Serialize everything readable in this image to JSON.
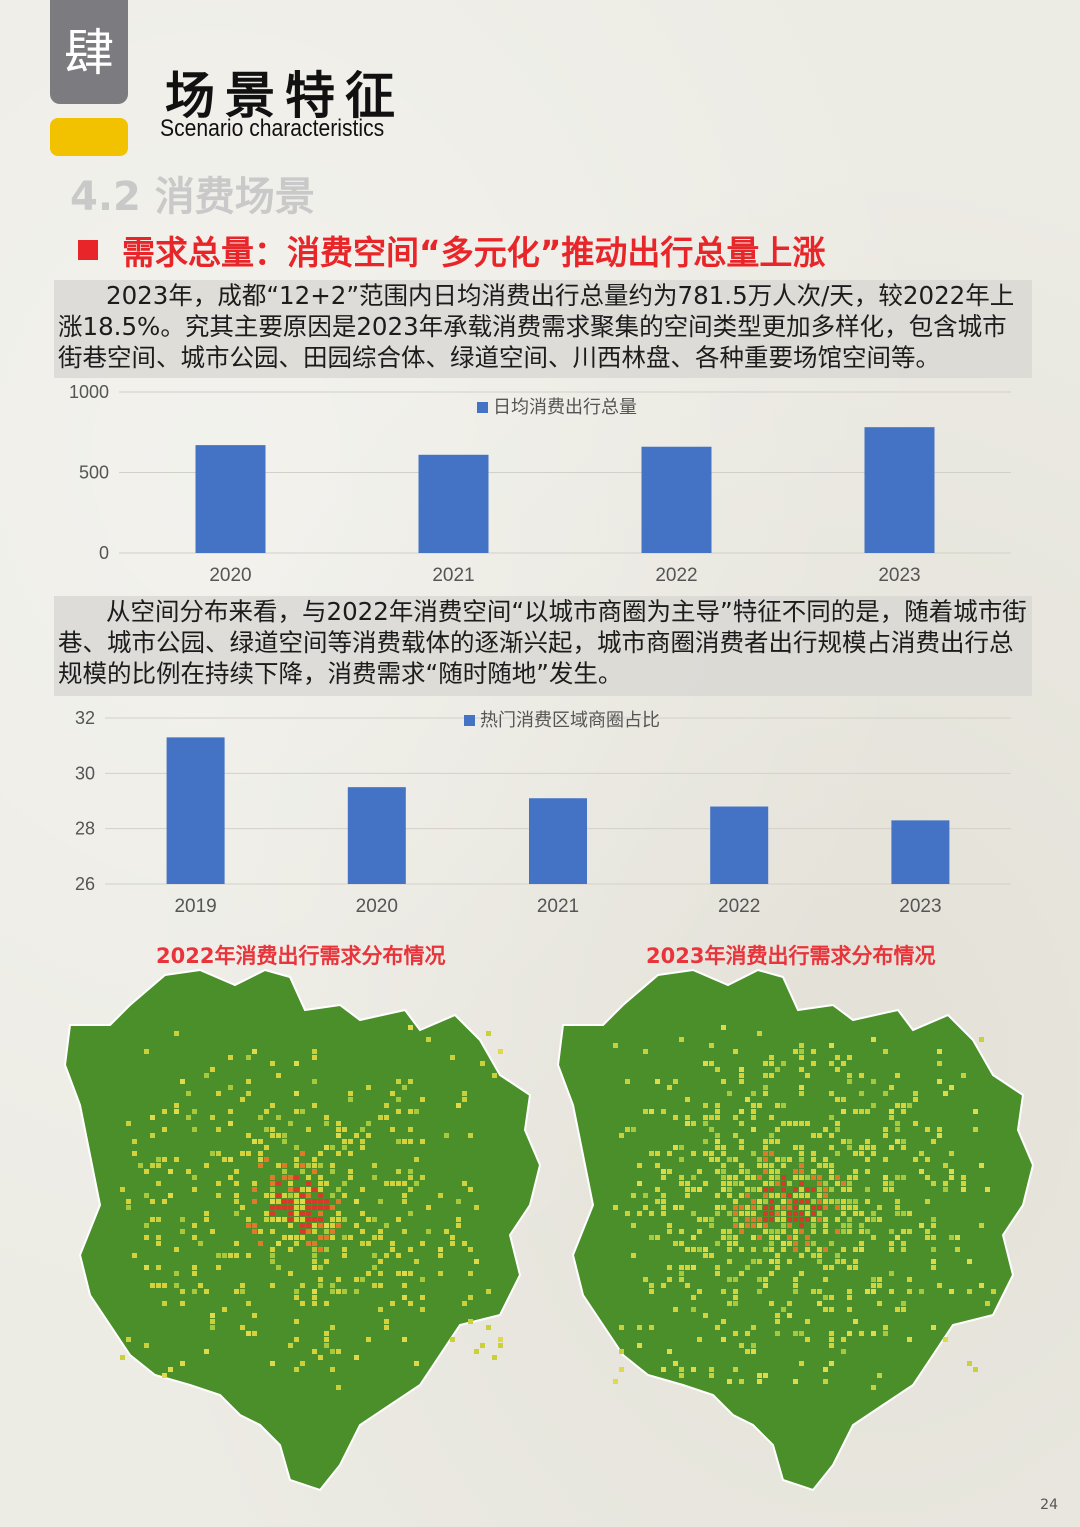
{
  "header": {
    "badge_char": "肆",
    "title_cn": "场景特征",
    "title_en": "Scenario characteristics",
    "section": "4.2  消费场景"
  },
  "headline": "需求总量：消费空间“多元化”推动出行总量上涨",
  "para1": "2023年，成都“12+2”范围内日均消费出行总量约为781.5万人次/天，较2022年上涨18.5%。究其主要原因是2023年承载消费需求聚集的空间类型更加多样化，包含城市街巷空间、城市公园、田园综合体、绿道空间、川西林盘、各种重要场馆空间等。",
  "para2": "从空间分布来看，与2022年消费空间“以城市商圈为主导”特征不同的是，随着城市街巷、城市公园、绿道空间等消费载体的逐渐兴起，城市商圈消费者出行规模占消费出行总规模的比例在持续下降，消费需求“随时随地”发生。",
  "chart_data": [
    {
      "type": "bar",
      "categories": [
        "2020",
        "2021",
        "2022",
        "2023"
      ],
      "series": [
        {
          "name": "日均消费出行总量",
          "values": [
            670,
            610,
            660,
            781.5
          ]
        }
      ],
      "ylim": [
        0,
        1000
      ],
      "yticks": [
        "1000",
        "500",
        "0"
      ],
      "grid": true,
      "legend": "top-center",
      "color": "#4472c4"
    },
    {
      "type": "bar",
      "categories": [
        "2019",
        "2020",
        "2021",
        "2022",
        "2023"
      ],
      "series": [
        {
          "name": "热门消费区域商圈占比",
          "values": [
            31.3,
            29.5,
            29.1,
            28.8,
            28.3
          ]
        }
      ],
      "ylim": [
        26,
        32
      ],
      "yticks": [
        "32",
        "30",
        "28",
        "26"
      ],
      "grid": true,
      "legend": "top-center",
      "color": "#4472c4"
    }
  ],
  "maps": [
    {
      "title": "2022年消费出行需求分布情况",
      "base_color": "#4a8f2a"
    },
    {
      "title": "2023年消费出行需求分布情况",
      "base_color": "#4a8f2a"
    }
  ],
  "page_number": "24"
}
